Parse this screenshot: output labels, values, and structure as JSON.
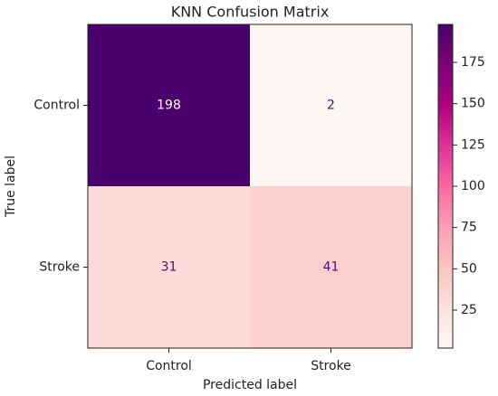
{
  "chart_data": {
    "type": "heatmap",
    "title": "KNN Confusion Matrix",
    "x_label": "Predicted label",
    "y_label": "True label",
    "x_categories": [
      "Control",
      "Stroke"
    ],
    "y_categories": [
      "Control",
      "Stroke"
    ],
    "values": [
      [
        198,
        2
      ],
      [
        31,
        41
      ]
    ],
    "colormap": [
      "#fff7f3",
      "#fde0dd",
      "#fcc5c0",
      "#fa9fb5",
      "#f768a1",
      "#dd3497",
      "#ae017e",
      "#7a0177",
      "#49006a"
    ],
    "clim": [
      2,
      198
    ],
    "colorbar_ticks": [
      25,
      50,
      75,
      100,
      125,
      150,
      175
    ]
  }
}
